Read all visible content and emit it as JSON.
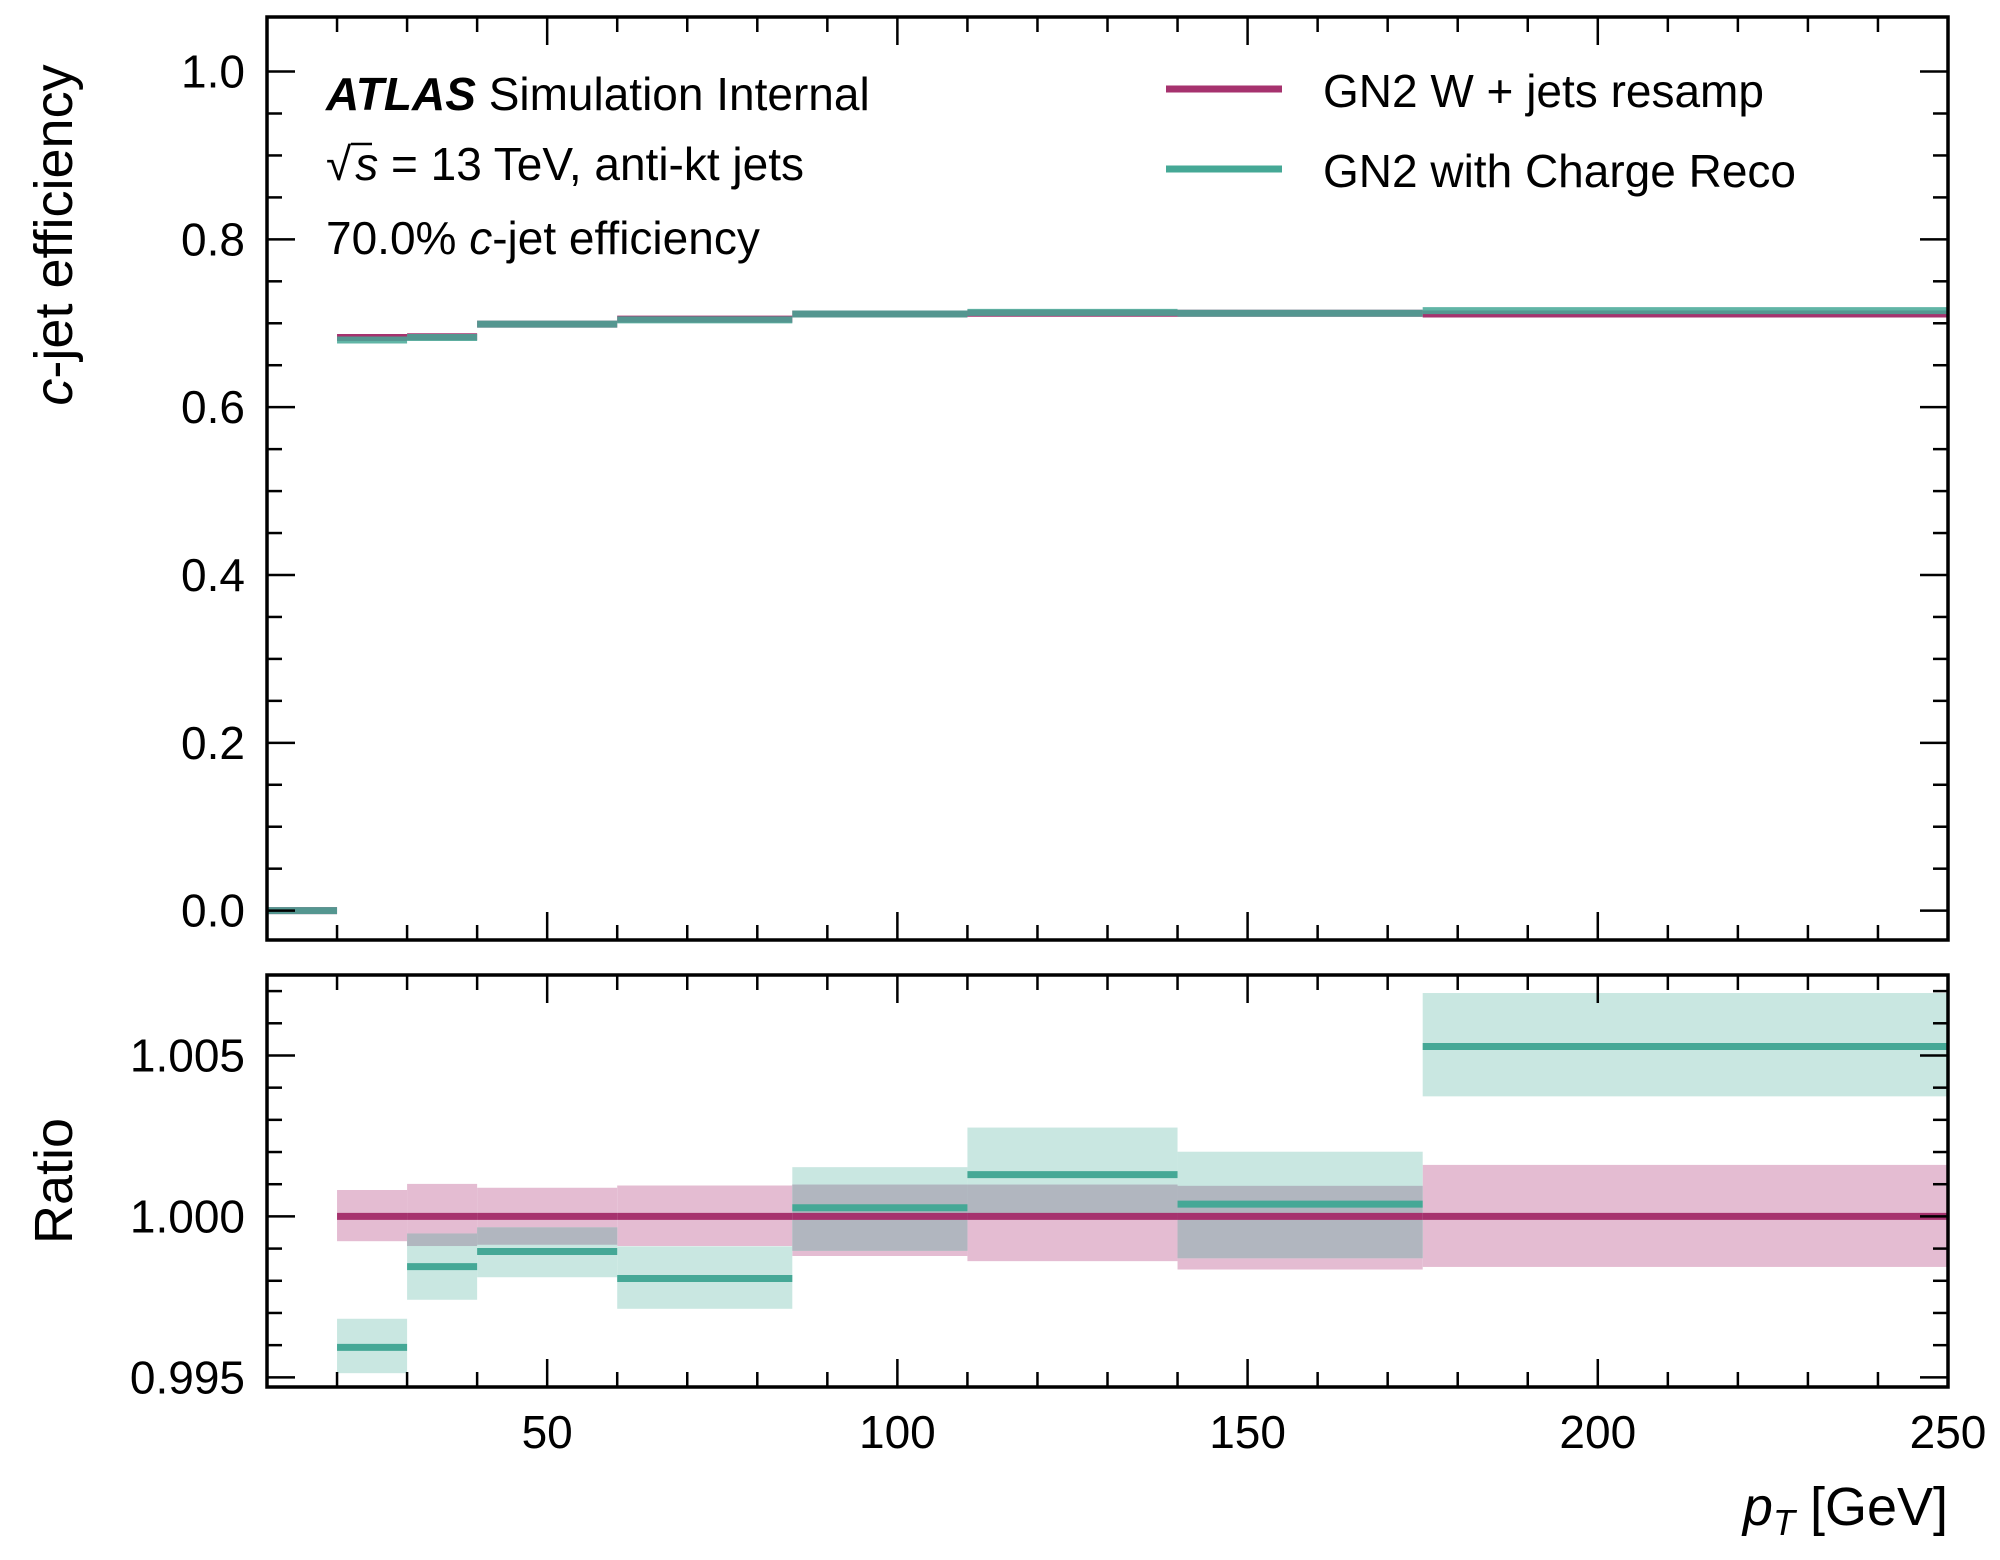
{
  "colors": {
    "series1": "#a6326e",
    "series2": "#45a896",
    "series1_band": "#e4bcd2",
    "series2_band": "#c3e4de",
    "overlap_band": "#b1b6bf",
    "axis": "#000000"
  },
  "annotations": {
    "atlas": "ATLAS",
    "atlas_suffix": "Simulation Internal",
    "sqrt_symbol": "√",
    "line2_var": "s",
    "line2_rest": " = 13 TeV, anti-kt jets",
    "line3_prefix": "70.0% ",
    "line3_var": "c",
    "line3_suffix": "-jet efficiency"
  },
  "chart_data": [
    {
      "type": "line",
      "panel": "top",
      "ylabel_var": "c",
      "ylabel_rest": "-jet efficiency",
      "xlim": [
        10,
        250
      ],
      "ylim": [
        -0.035,
        1.065
      ],
      "yticks": [
        0.0,
        0.2,
        0.4,
        0.6,
        0.8,
        1.0
      ],
      "ytick_labels": [
        "0.0",
        "0.2",
        "0.4",
        "0.6",
        "0.8",
        "1.0"
      ],
      "legend_position": "top-right",
      "bin_edges": [
        10,
        20,
        30,
        40,
        60,
        85,
        110,
        140,
        175,
        250
      ],
      "series": [
        {
          "name": "GN2 W + jets resamp",
          "color_key": "series1",
          "values": [
            0.0,
            0.683,
            0.684,
            0.699,
            0.705,
            0.711,
            0.712,
            0.712,
            0.711
          ]
        },
        {
          "name": "GN2 with Charge Reco",
          "color_key": "series2",
          "values": [
            0.0,
            0.68,
            0.683,
            0.699,
            0.704,
            0.711,
            0.713,
            0.712,
            0.715
          ]
        }
      ]
    },
    {
      "type": "line",
      "panel": "bottom",
      "ylabel": "Ratio",
      "xlabel_var": "p",
      "xlabel_sub": "T",
      "xlabel_unit": " [GeV]",
      "xlim": [
        10,
        250
      ],
      "ylim": [
        0.9947,
        1.0075
      ],
      "yticks": [
        0.995,
        1.0,
        1.005
      ],
      "ytick_labels": [
        "0.995",
        "1.000",
        "1.005"
      ],
      "xticks": [
        50,
        100,
        150,
        200,
        250
      ],
      "xtick_labels": [
        "50",
        "100",
        "150",
        "200",
        "250"
      ],
      "bin_edges": [
        20,
        30,
        40,
        60,
        85,
        110,
        140,
        175,
        250
      ],
      "series": [
        {
          "name": "GN2 W + jets resamp",
          "color_key": "series1",
          "values": [
            1.0,
            1.0,
            1.0,
            1.0,
            1.0,
            1.0,
            1.0,
            1.0
          ],
          "band_low": [
            0.99923,
            0.99908,
            0.99912,
            0.99908,
            0.99877,
            0.99861,
            0.99835,
            0.99843
          ],
          "band_high": [
            1.00082,
            1.00101,
            1.00089,
            1.00096,
            1.00099,
            1.00099,
            1.00095,
            1.0016
          ]
        },
        {
          "name": "GN2 with Charge Reco",
          "color_key": "series2",
          "values": [
            0.99593,
            0.99844,
            0.99891,
            0.99807,
            1.00027,
            1.0013,
            1.00038,
            1.00528
          ],
          "band_low": [
            0.99513,
            0.99741,
            0.99811,
            0.99713,
            0.99893,
            0.99995,
            0.9987,
            1.00373
          ],
          "band_high": [
            0.99682,
            0.99947,
            0.99966,
            0.99907,
            1.00153,
            1.00276,
            1.00201,
            1.00694
          ]
        }
      ]
    }
  ]
}
